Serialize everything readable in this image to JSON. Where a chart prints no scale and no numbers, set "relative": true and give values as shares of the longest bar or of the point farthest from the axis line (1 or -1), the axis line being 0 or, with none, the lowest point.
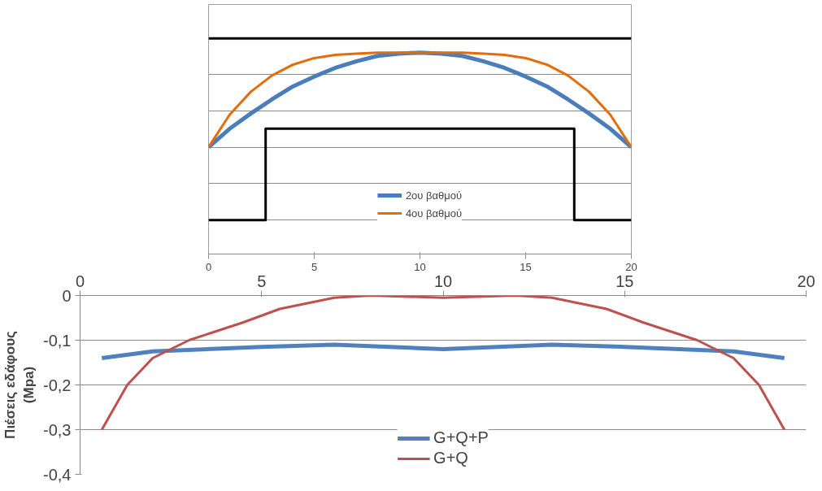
{
  "chart_data": [
    {
      "type": "line",
      "relative": true,
      "xlim": [
        0,
        20
      ],
      "xticks": [
        0,
        5,
        10,
        15,
        20
      ],
      "grid": "y",
      "legend": "bottom",
      "tick_labels": "x",
      "series": [
        {
          "color": "#000000",
          "x": [
            0,
            20
          ],
          "values": [
            1,
            1
          ]
        },
        {
          "color": "#000000",
          "x": [
            0,
            2.7,
            2.7,
            17.3,
            17.3,
            20
          ],
          "values": [
            -0.67,
            -0.67,
            0.17,
            0.17,
            -0.67,
            -0.67
          ]
        },
        {
          "name": "2ου βαθμού",
          "color": "#4a7ebb",
          "x": [
            0,
            1,
            2,
            3,
            4,
            5,
            6,
            7,
            8,
            9,
            10,
            11,
            12,
            13,
            14,
            15,
            16,
            17,
            18,
            19,
            20
          ],
          "values": [
            0,
            0.17,
            0.31,
            0.44,
            0.56,
            0.65,
            0.73,
            0.79,
            0.84,
            0.86,
            0.87,
            0.86,
            0.84,
            0.79,
            0.73,
            0.65,
            0.56,
            0.44,
            0.31,
            0.17,
            0
          ]
        },
        {
          "name": "4ου βαθμού",
          "color": "#e46c0a",
          "x": [
            0,
            1,
            2,
            3,
            4,
            5,
            6,
            7,
            8,
            9,
            10,
            11,
            12,
            13,
            14,
            15,
            16,
            17,
            18,
            19,
            20
          ],
          "values": [
            0,
            0.3,
            0.51,
            0.66,
            0.76,
            0.82,
            0.85,
            0.86,
            0.87,
            0.87,
            0.87,
            0.87,
            0.87,
            0.86,
            0.85,
            0.82,
            0.76,
            0.66,
            0.51,
            0.3,
            0
          ]
        }
      ]
    },
    {
      "type": "line",
      "ylabel": "Πιέσεις εδάφους\n(Mpa)",
      "xlim": [
        0,
        20
      ],
      "xticks": [
        0,
        5,
        10,
        15,
        20
      ],
      "ylim": [
        -0.4,
        0
      ],
      "yticks": [
        {
          "value": 0,
          "label": "0"
        },
        {
          "value": -0.1,
          "label": "-0,1"
        },
        {
          "value": -0.2,
          "label": "-0,2"
        },
        {
          "value": -0.3,
          "label": "-0,3"
        },
        {
          "value": -0.4,
          "label": "-0,4"
        }
      ],
      "grid": "y",
      "legend": "bottom",
      "series": [
        {
          "name": "G+Q+P",
          "color": "#4f81bd",
          "x": [
            0.6,
            2,
            5,
            7,
            10,
            13,
            15,
            18,
            19.4
          ],
          "values": [
            -0.14,
            -0.125,
            -0.115,
            -0.11,
            -0.12,
            -0.11,
            -0.115,
            -0.125,
            -0.14
          ]
        },
        {
          "name": "G+Q",
          "color": "#c0504d",
          "x": [
            0.6,
            1.3,
            2,
            3,
            4.5,
            5.5,
            7,
            8,
            10,
            12,
            13,
            14.5,
            15.5,
            17,
            18,
            18.7,
            19.4
          ],
          "values": [
            -0.3,
            -0.2,
            -0.14,
            -0.1,
            -0.06,
            -0.03,
            -0.005,
            0,
            -0.005,
            0,
            -0.005,
            -0.03,
            -0.06,
            -0.1,
            -0.14,
            -0.2,
            -0.3
          ]
        }
      ]
    }
  ]
}
